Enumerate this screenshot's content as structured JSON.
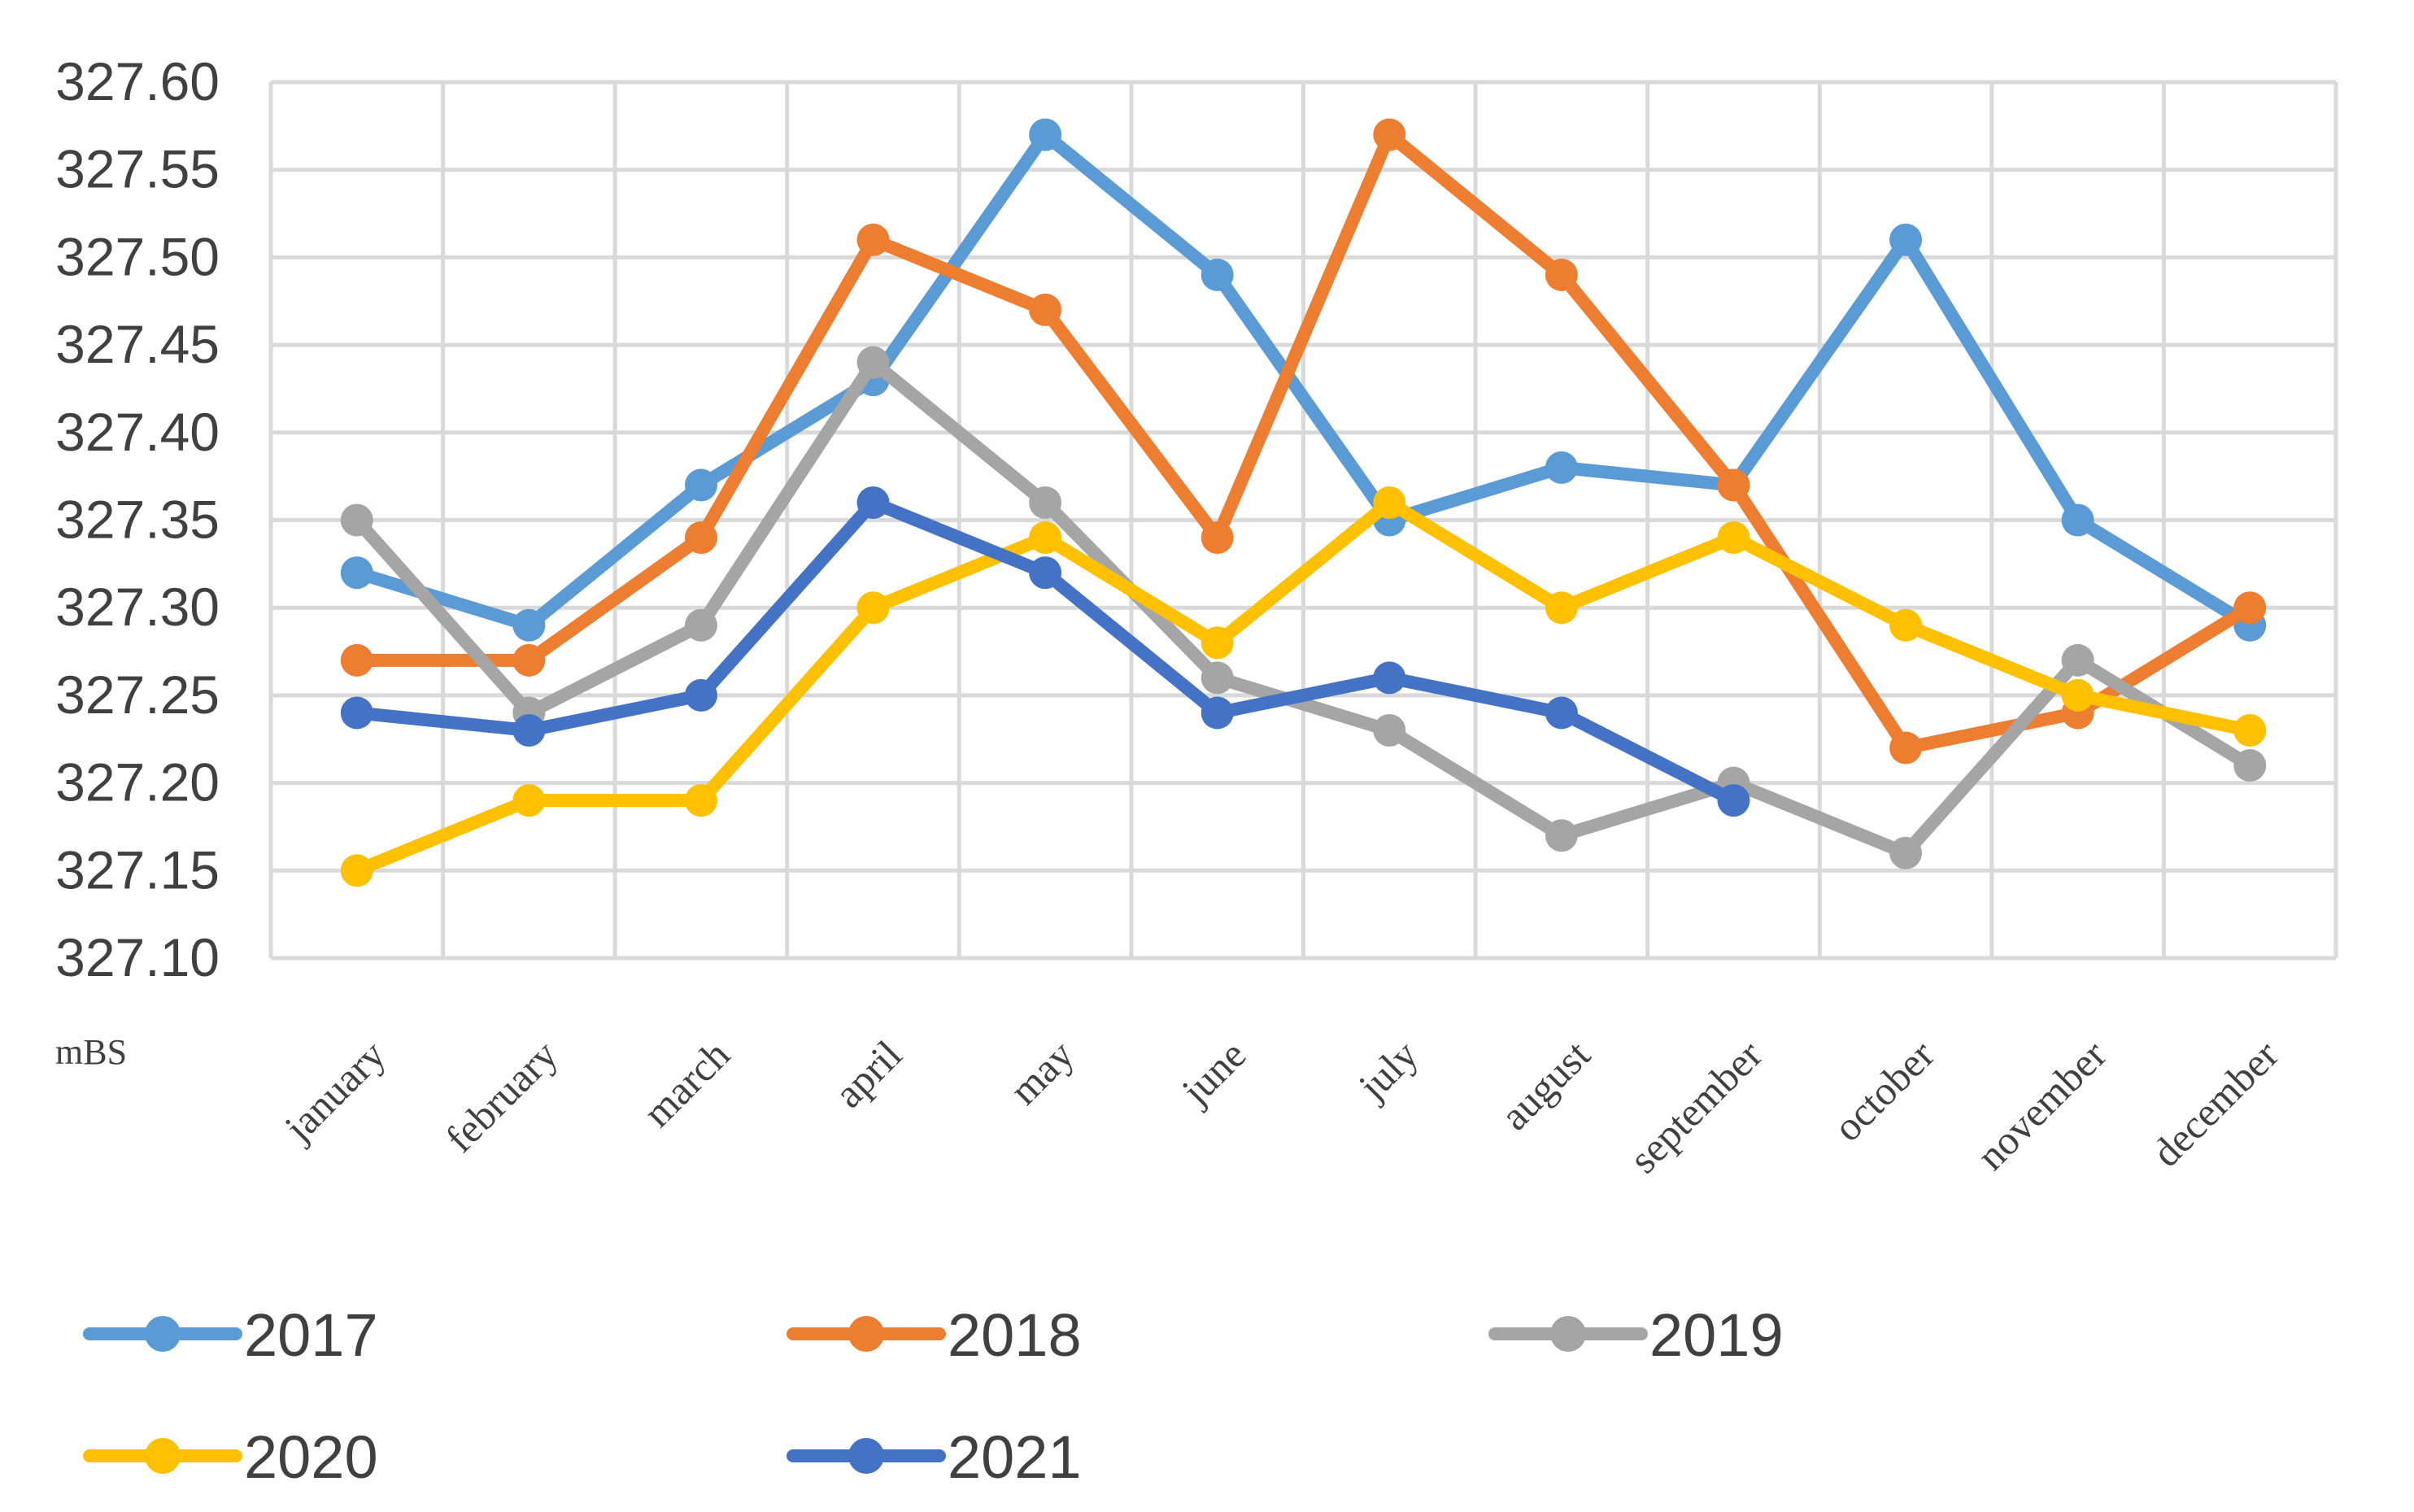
{
  "chart_data": {
    "type": "line",
    "title": "",
    "xlabel": "",
    "ylabel": "mBS",
    "ylim": [
      327.1,
      327.6
    ],
    "ytick_step": 0.05,
    "yticks": [
      "327.60",
      "327.55",
      "327.50",
      "327.45",
      "327.40",
      "327.35",
      "327.30",
      "327.25",
      "327.20",
      "327.15",
      "327.10"
    ],
    "grid": true,
    "legend_position": "bottom",
    "categories": [
      "january",
      "february",
      "march",
      "april",
      "may",
      "june",
      "july",
      "august",
      "september",
      "october",
      "november",
      "december"
    ],
    "series": [
      {
        "name": "2017",
        "color": "#5B9BD5",
        "values": [
          327.32,
          327.29,
          327.37,
          327.43,
          327.57,
          327.49,
          327.35,
          327.38,
          327.37,
          327.51,
          327.35,
          327.29
        ]
      },
      {
        "name": "2018",
        "color": "#ED7D31",
        "values": [
          327.27,
          327.27,
          327.34,
          327.51,
          327.47,
          327.34,
          327.57,
          327.49,
          327.37,
          327.22,
          327.24,
          327.3
        ]
      },
      {
        "name": "2019",
        "color": "#A5A5A5",
        "values": [
          327.35,
          327.24,
          327.29,
          327.44,
          327.36,
          327.26,
          327.23,
          327.17,
          327.2,
          327.16,
          327.27,
          327.21
        ]
      },
      {
        "name": "2020",
        "color": "#FFC000",
        "values": [
          327.15,
          327.19,
          327.19,
          327.3,
          327.34,
          327.28,
          327.36,
          327.3,
          327.34,
          327.29,
          327.25,
          327.23
        ]
      },
      {
        "name": "2021",
        "color": "#4472C4",
        "values": [
          327.24,
          327.23,
          327.25,
          327.36,
          327.32,
          327.24,
          327.26,
          327.24,
          327.19,
          null,
          null,
          null
        ]
      }
    ]
  }
}
